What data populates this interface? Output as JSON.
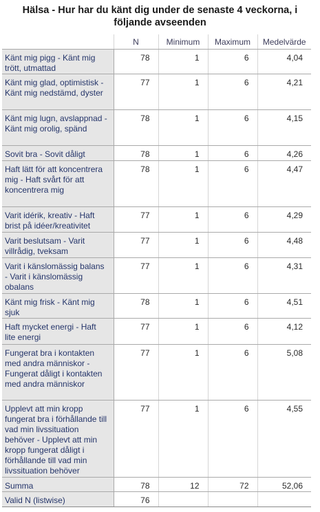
{
  "title": "Hälsa - Hur har du känt dig under de senaste 4 veckorna, i följande avseenden",
  "columns": [
    "",
    "N",
    "Minimum",
    "Maximum",
    "Medelvärde"
  ],
  "rows": [
    {
      "label": "Känt mig pigg - Känt mig trött, utmattad",
      "n": "78",
      "min": "1",
      "max": "6",
      "mean": "4,04",
      "h": 35
    },
    {
      "label": "Känt mig glad, optimistisk - Känt mig nedstämd, dyster",
      "n": "77",
      "min": "1",
      "max": "6",
      "mean": "4,21",
      "h": 52
    },
    {
      "label": "Känt mig lugn, avslappnad - Känt mig orolig, spänd",
      "n": "78",
      "min": "1",
      "max": "6",
      "mean": "4,15",
      "h": 52
    },
    {
      "label": "Sovit bra - Sovit dåligt",
      "n": "78",
      "min": "1",
      "max": "6",
      "mean": "4,26",
      "h": 22
    },
    {
      "label": "Haft lätt för att koncentrera mig - Haft svårt för att koncentrera mig",
      "n": "78",
      "min": "1",
      "max": "6",
      "mean": "4,47",
      "h": 67
    },
    {
      "label": "Varit idérik, kreativ - Haft brist på idéer/kreativitet",
      "n": "77",
      "min": "1",
      "max": "6",
      "mean": "4,29",
      "h": 37
    },
    {
      "label": "Varit beslutsam - Varit villrådig, tveksam",
      "n": "77",
      "min": "1",
      "max": "6",
      "mean": "4,48",
      "h": 37
    },
    {
      "label": "Varit i känslomässig balans - Varit i känslomässig obalans",
      "n": "77",
      "min": "1",
      "max": "6",
      "mean": "4,31",
      "h": 52
    },
    {
      "label": "Känt mig frisk - Känt mig sjuk",
      "n": "78",
      "min": "1",
      "max": "6",
      "mean": "4,51",
      "h": 36
    },
    {
      "label": "Haft mycket energi - Haft lite energi",
      "n": "77",
      "min": "1",
      "max": "6",
      "mean": "4,12",
      "h": 38
    },
    {
      "label": "Fungerat bra i kontakten med andra människor - Fungerat dåligt i kontakten med andra människor",
      "n": "77",
      "min": "1",
      "max": "6",
      "mean": "5,08",
      "h": 81
    },
    {
      "label": "Upplevt att min kropp fungerat bra i förhållande till vad min livssituation behöver - Upplevt att min kropp fungerat dåligt i förhållande till vad min livssituation behöver",
      "n": "77",
      "min": "1",
      "max": "6",
      "mean": "4,55",
      "h": 112
    },
    {
      "label": "Summa",
      "n": "78",
      "min": "12",
      "max": "72",
      "mean": "52,06",
      "h": 21
    },
    {
      "label": "Valid N (listwise)",
      "n": "76",
      "min": "",
      "max": "",
      "mean": "",
      "h": 22
    }
  ]
}
